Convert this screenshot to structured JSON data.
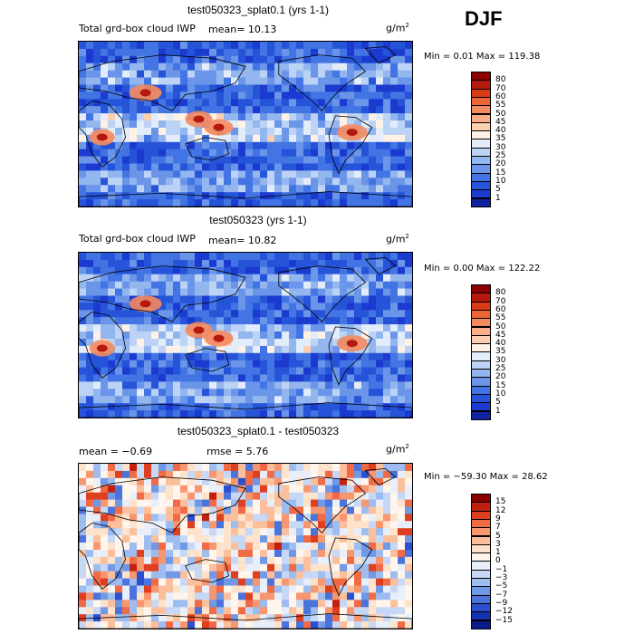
{
  "season": "DJF",
  "panels": [
    {
      "title": "test050323_splat0.1 (yrs 1-1)",
      "variable": "Total grd-box cloud IWP",
      "stat1": "mean=   10.13",
      "stat2": "",
      "units_base": "g/m",
      "units_exp": "2",
      "minmax": "Min =    0.01 Max = 119.38",
      "scale_type": "seq",
      "levels": [
        "80",
        "70",
        "60",
        "55",
        "50",
        "45",
        "40",
        "35",
        "30",
        "25",
        "20",
        "15",
        "10",
        "5",
        "1"
      ],
      "colors": [
        "#8b0000",
        "#b5180c",
        "#d93b14",
        "#ee6435",
        "#f58a5e",
        "#f9ae88",
        "#fbd0b2",
        "#fff2e5",
        "#e2ecfa",
        "#bcd3f5",
        "#93b6ef",
        "#6a95e8",
        "#4374e3",
        "#2654d8",
        "#1b3ad0",
        "#0f229f"
      ]
    },
    {
      "title": "test050323 (yrs 1-1)",
      "variable": "Total grd-box cloud IWP",
      "stat1": "mean=   10.82",
      "stat2": "",
      "units_base": "g/m",
      "units_exp": "2",
      "minmax": "Min =    0.00 Max = 122.22",
      "scale_type": "seq",
      "levels": [
        "80",
        "70",
        "60",
        "55",
        "50",
        "45",
        "40",
        "35",
        "30",
        "25",
        "20",
        "15",
        "10",
        "5",
        "1"
      ],
      "colors": [
        "#8b0000",
        "#b5180c",
        "#d93b14",
        "#ee6435",
        "#f58a5e",
        "#f9ae88",
        "#fbd0b2",
        "#fff2e5",
        "#e2ecfa",
        "#bcd3f5",
        "#93b6ef",
        "#6a95e8",
        "#4374e3",
        "#2654d8",
        "#1b3ad0",
        "#0f229f"
      ]
    },
    {
      "title": "test050323_splat0.1 - test050323",
      "variable": "",
      "stat1": "mean =   −0.69",
      "stat2": "rmse =    5.76",
      "units_base": "g/m",
      "units_exp": "2",
      "minmax": "Min = −59.30 Max =   28.62",
      "scale_type": "div",
      "levels": [
        "15",
        "12",
        "9",
        "7",
        "5",
        "3",
        "1",
        "0",
        "−1",
        "−3",
        "−5",
        "−7",
        "−9",
        "−12",
        "−15"
      ],
      "colors": [
        "#8b0000",
        "#c1200f",
        "#de3f20",
        "#ef6a45",
        "#f7966f",
        "#fbbf9c",
        "#fde2cc",
        "#fff5ec",
        "#e8effb",
        "#c6d8f5",
        "#9dbcef",
        "#7098e5",
        "#4a73dc",
        "#2a50cf",
        "#1630b4",
        "#0a1a8a"
      ]
    }
  ]
}
